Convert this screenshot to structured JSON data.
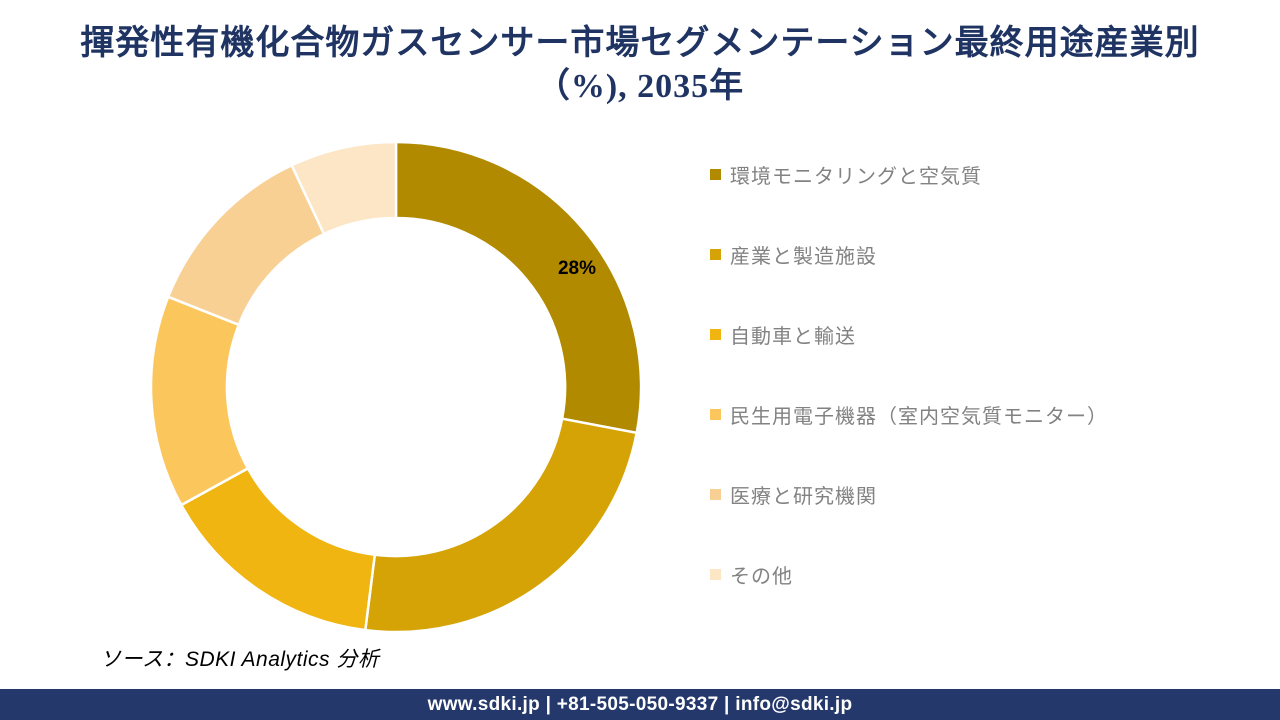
{
  "header": {
    "title_line1": "揮発性有機化合物ガスセンサー市場セグメンテーション最終用途産業別",
    "title_line2": "（%), 2035年",
    "title_color": "#1F3462"
  },
  "chart_data": {
    "type": "pie",
    "subtype": "donut",
    "title": "揮発性有機化合物ガスセンサー市場セグメンテーション最終用途産業別（%), 2035年",
    "categories": [
      "環境モニタリングと空気質",
      "産業と製造施設",
      "自動車と輸送",
      "民生用電子機器（室内空気質モニター）",
      "医療と研究機関",
      "その他"
    ],
    "values": [
      28,
      24,
      15,
      14,
      12,
      7
    ],
    "unit": "%",
    "colors": [
      "#B18A00",
      "#D5A306",
      "#F0B510",
      "#FBC75D",
      "#F9D093",
      "#FCE6C5"
    ],
    "data_labels": [
      "28%",
      "",
      "",
      "",
      "",
      ""
    ],
    "donut_hole_ratio": 0.69,
    "start_angle_deg": 0,
    "direction": "clockwise",
    "legend_position": "right",
    "label_angle_nudge_deg": 6,
    "slice_border_color": "#FFFFFF"
  },
  "source": {
    "text": "ソース：SDKI Analytics  分析"
  },
  "footer": {
    "text": "www.sdki.jp | +81-505-050-9337 | info@sdki.jp",
    "background": "#24386B"
  }
}
